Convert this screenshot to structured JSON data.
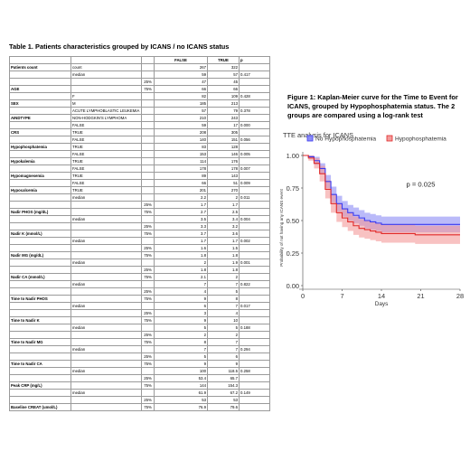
{
  "table": {
    "title": "Table 1. Patients characteristics grouped by ICANS / no ICANS status",
    "headers": [
      "",
      "",
      "",
      "FALSE",
      "TRUE",
      "p"
    ],
    "rows": [
      [
        "Patients count",
        "count",
        "",
        "267",
        "322",
        ""
      ],
      [
        "",
        "median",
        "",
        "59",
        "57",
        "0.417"
      ],
      [
        "",
        "",
        "25%",
        "47",
        "45",
        ""
      ],
      [
        "AGE",
        "",
        "75%",
        "66",
        "66",
        ""
      ],
      [
        "",
        "F",
        "",
        "82",
        "109",
        "0.428"
      ],
      [
        "SEX",
        "M",
        "",
        "185",
        "213",
        ""
      ],
      [
        "",
        "ACUTE LYMPHOBLASTIC LEUKEMIA",
        "",
        "57",
        "79",
        "0.378"
      ],
      [
        "AINDTYPE",
        "NON-HODGKIN'S LYMPHOMA",
        "",
        "210",
        "243",
        ""
      ],
      [
        "",
        "FALSE",
        "",
        "59",
        "17",
        "0.000"
      ],
      [
        "CRS",
        "TRUE",
        "",
        "208",
        "305",
        ""
      ],
      [
        "",
        "FALSE",
        "",
        "140",
        "151",
        "0.056"
      ],
      [
        "Hypophosphatemia",
        "TRUE",
        "",
        "83",
        "128",
        ""
      ],
      [
        "",
        "FALSE",
        "",
        "153",
        "146",
        "0.005"
      ],
      [
        "Hypokalemia",
        "TRUE",
        "",
        "114",
        "176",
        ""
      ],
      [
        "",
        "FALSE",
        "",
        "178",
        "178",
        "0.007"
      ],
      [
        "Hypomagnesemia",
        "TRUE",
        "",
        "89",
        "143",
        ""
      ],
      [
        "",
        "FALSE",
        "",
        "66",
        "51",
        "0.009"
      ],
      [
        "Hypocalcemia",
        "TRUE",
        "",
        "201",
        "270",
        ""
      ],
      [
        "",
        "median",
        "",
        "2.2",
        "2",
        "0.011"
      ],
      [
        "",
        "",
        "25%",
        "1.7",
        "1.7",
        ""
      ],
      [
        "Nadir PHOS (mg/dL)",
        "",
        "75%",
        "2.7",
        "2.5",
        ""
      ],
      [
        "",
        "median",
        "",
        "3.5",
        "3.4",
        "0.004"
      ],
      [
        "",
        "",
        "25%",
        "3.3",
        "3.2",
        ""
      ],
      [
        "Nadir K (mmol/L)",
        "",
        "75%",
        "3.7",
        "3.6",
        ""
      ],
      [
        "",
        "median",
        "",
        "1.7",
        "1.7",
        "0.002"
      ],
      [
        "",
        "",
        "25%",
        "1.6",
        "1.5",
        ""
      ],
      [
        "Nadir MG (mg/dL)",
        "",
        "75%",
        "1.8",
        "1.8",
        ""
      ],
      [
        "",
        "median",
        "",
        "2",
        "1.9",
        "0.001"
      ],
      [
        "",
        "",
        "25%",
        "1.8",
        "1.8",
        ""
      ],
      [
        "Nadir CA (mmol/L)",
        "",
        "75%",
        "2.1",
        "2",
        ""
      ],
      [
        "",
        "median",
        "",
        "7",
        "7",
        "0.822"
      ],
      [
        "",
        "",
        "25%",
        "4",
        "5",
        ""
      ],
      [
        "Time to Nadir PHOS",
        "",
        "75%",
        "9",
        "8",
        ""
      ],
      [
        "",
        "median",
        "",
        "6",
        "7",
        "0.017"
      ],
      [
        "",
        "",
        "25%",
        "3",
        "4",
        ""
      ],
      [
        "Time to Nadir K",
        "",
        "75%",
        "9",
        "10",
        ""
      ],
      [
        "",
        "median",
        "",
        "5",
        "5",
        "0.188"
      ],
      [
        "",
        "",
        "25%",
        "2",
        "2",
        ""
      ],
      [
        "Time to Nadir MG",
        "",
        "75%",
        "8",
        "7",
        ""
      ],
      [
        "",
        "median",
        "",
        "7",
        "7",
        "0.294"
      ],
      [
        "",
        "",
        "25%",
        "5",
        "6",
        ""
      ],
      [
        "Time to Nadir CA",
        "",
        "75%",
        "9",
        "9",
        ""
      ],
      [
        "",
        "median",
        "",
        "100",
        "118.5",
        "0.258"
      ],
      [
        "",
        "",
        "25%",
        "53.4",
        "65.7",
        ""
      ],
      [
        "Peak CRP (mg/L)",
        "",
        "75%",
        "144",
        "154.3",
        ""
      ],
      [
        "",
        "median",
        "",
        "61.9",
        "67.2",
        "0.149"
      ],
      [
        "",
        "",
        "25%",
        "53",
        "53",
        ""
      ],
      [
        "Baseline CREAT (umol/L)",
        "",
        "75%",
        "76.9",
        "79.6",
        ""
      ]
    ]
  },
  "figure": {
    "title": "Figure 1: Kaplan-Meier curve for the Time to Event for ICANS, grouped by Hypophosphatemia status. The 2 groups are compared using a log-rank test"
  },
  "chart_data": {
    "type": "line",
    "title": "TTE analysis for ICANS",
    "xlabel": "Days",
    "ylabel": "Probability of not having any ICANS event",
    "xlim": [
      0,
      28
    ],
    "ylim": [
      0,
      1
    ],
    "x_ticks": [
      "0",
      "7",
      "14",
      "21",
      "28"
    ],
    "y_ticks": [
      "0.00",
      "0.25",
      "0.50",
      "0.75",
      "1.00"
    ],
    "annotation": "p = 0.025",
    "legend_position": "top",
    "series": [
      {
        "name": "No Hypophosphatemia",
        "color": "#3b3bf0",
        "band_color": "#8c8cf5",
        "x": [
          0,
          1,
          2,
          3,
          4,
          5,
          6,
          7,
          8,
          9,
          10,
          11,
          12,
          13,
          14,
          16,
          18,
          20,
          22,
          24,
          26,
          28
        ],
        "y": [
          1.0,
          0.99,
          0.96,
          0.9,
          0.8,
          0.7,
          0.63,
          0.59,
          0.56,
          0.54,
          0.52,
          0.5,
          0.49,
          0.48,
          0.47,
          0.47,
          0.47,
          0.47,
          0.47,
          0.47,
          0.47,
          0.47
        ],
        "lower": [
          1.0,
          0.98,
          0.93,
          0.86,
          0.75,
          0.64,
          0.57,
          0.53,
          0.5,
          0.48,
          0.46,
          0.44,
          0.43,
          0.42,
          0.41,
          0.41,
          0.41,
          0.41,
          0.41,
          0.41,
          0.41,
          0.41
        ],
        "upper": [
          1.0,
          1.0,
          0.99,
          0.94,
          0.85,
          0.76,
          0.69,
          0.65,
          0.62,
          0.6,
          0.58,
          0.56,
          0.55,
          0.54,
          0.53,
          0.53,
          0.53,
          0.53,
          0.53,
          0.53,
          0.53,
          0.53
        ]
      },
      {
        "name": "Hypophosphatemia",
        "color": "#e02a2a",
        "band_color": "#f39a9a",
        "x": [
          0,
          1,
          2,
          3,
          4,
          5,
          6,
          7,
          8,
          9,
          10,
          11,
          12,
          13,
          14,
          16,
          18,
          20,
          22,
          24,
          26,
          28
        ],
        "y": [
          1.0,
          0.98,
          0.94,
          0.86,
          0.74,
          0.63,
          0.56,
          0.52,
          0.49,
          0.46,
          0.44,
          0.43,
          0.42,
          0.41,
          0.4,
          0.4,
          0.4,
          0.39,
          0.39,
          0.39,
          0.39,
          0.39
        ],
        "lower": [
          1.0,
          0.96,
          0.9,
          0.8,
          0.67,
          0.56,
          0.49,
          0.45,
          0.42,
          0.39,
          0.37,
          0.36,
          0.35,
          0.34,
          0.33,
          0.33,
          0.33,
          0.32,
          0.32,
          0.32,
          0.32,
          0.32
        ],
        "upper": [
          1.0,
          1.0,
          0.98,
          0.92,
          0.81,
          0.7,
          0.63,
          0.59,
          0.56,
          0.53,
          0.51,
          0.5,
          0.49,
          0.48,
          0.47,
          0.47,
          0.47,
          0.46,
          0.46,
          0.46,
          0.46,
          0.46
        ]
      }
    ]
  }
}
